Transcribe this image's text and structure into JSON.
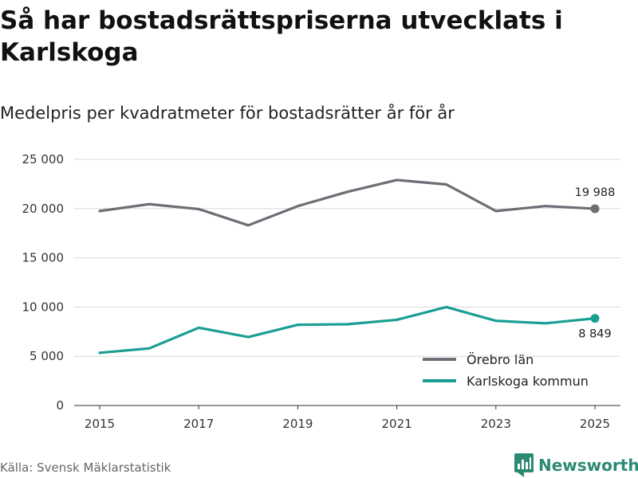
{
  "title": "Så har bostadsrättspriserna utvecklats i Karlskoga",
  "subtitle": "Medelpris per kvadratmeter för bostadsrätter år för år",
  "source": "Källa: Svensk Mäklarstatistik",
  "brand": "Newsworthy",
  "colors": {
    "orebro": "#6e6d75",
    "karlskoga": "#1a9e94",
    "brand": "#2c8a74",
    "grid": "#d9d9d9"
  },
  "chart_data": {
    "type": "line",
    "x": [
      2015,
      2016,
      2017,
      2018,
      2019,
      2020,
      2021,
      2022,
      2023,
      2024,
      2025
    ],
    "xticks": [
      2015,
      2017,
      2019,
      2021,
      2023,
      2025
    ],
    "ylim": [
      0,
      25000
    ],
    "yticks": [
      0,
      5000,
      10000,
      15000,
      20000,
      25000
    ],
    "ytick_labels": [
      "0",
      "5 000",
      "10 000",
      "15 000",
      "20 000",
      "25 000"
    ],
    "series": [
      {
        "name": "Örebro län",
        "color": "#6e6d75",
        "values": [
          19750,
          20450,
          19950,
          18300,
          20250,
          21700,
          22900,
          22450,
          19750,
          20250,
          19988
        ],
        "end_label": "19 988"
      },
      {
        "name": "Karlskoga kommun",
        "color": "#1a9e94",
        "values": [
          5350,
          5800,
          7900,
          6950,
          8200,
          8250,
          8700,
          10000,
          8600,
          8350,
          8849
        ],
        "end_label": "8 849"
      }
    ]
  }
}
